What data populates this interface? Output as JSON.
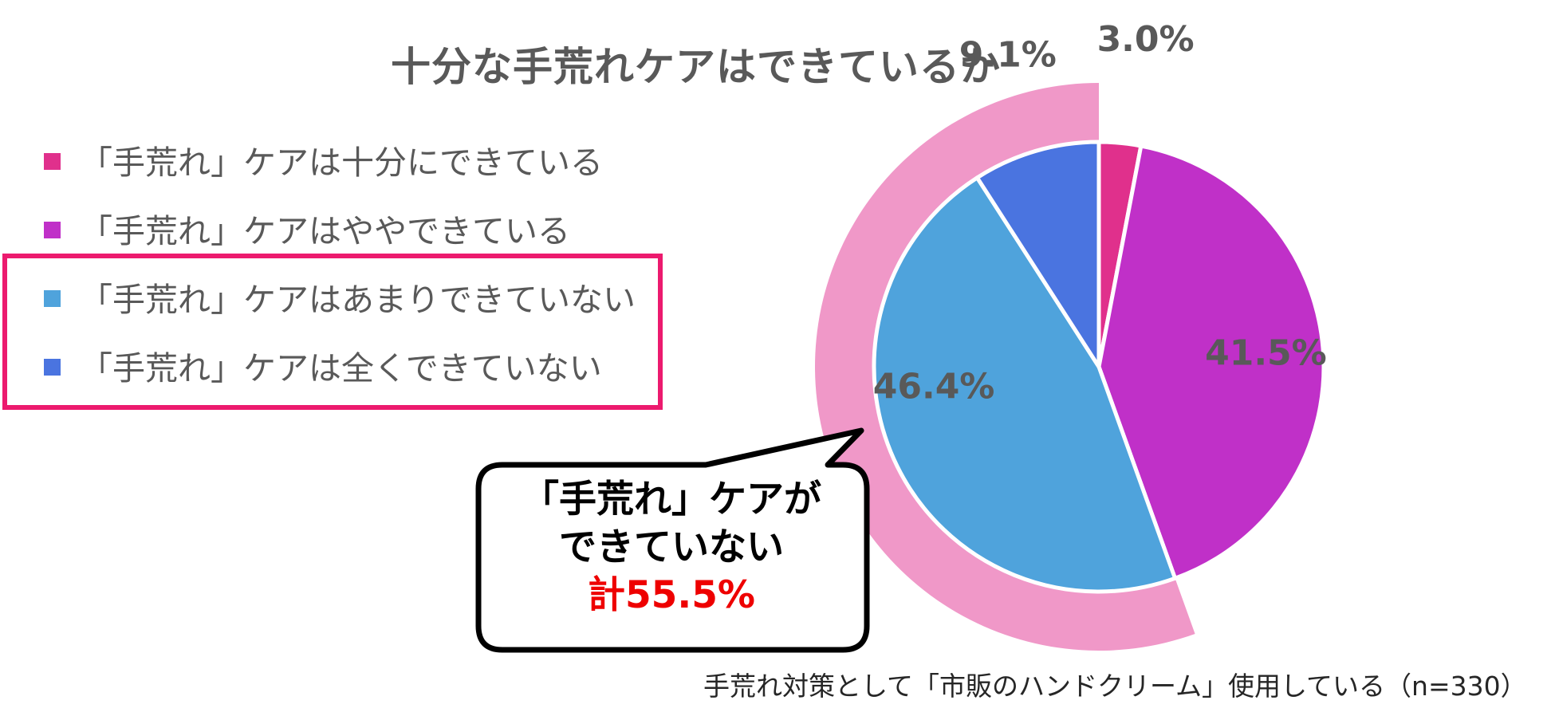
{
  "title": "十分な手荒れケアはできているか",
  "legend": [
    {
      "label": "「手荒れ」ケアは十分にできている",
      "color": "#e0308c"
    },
    {
      "label": "「手荒れ」ケアはややできている",
      "color": "#c030c8"
    },
    {
      "label": "「手荒れ」ケアはあまりできていない",
      "color": "#4fa3dc"
    },
    {
      "label": "「手荒れ」ケアは全くできていない",
      "color": "#4a74e0"
    }
  ],
  "chart_data": {
    "type": "pie",
    "title": "十分な手荒れケアはできているか",
    "categories": [
      "「手荒れ」ケアは十分にできている",
      "「手荒れ」ケアはややできている",
      "「手荒れ」ケアはあまりできていない",
      "「手荒れ」ケアは全くできていない"
    ],
    "values": [
      3.0,
      41.5,
      46.4,
      9.1
    ],
    "labels": [
      "3.0%",
      "41.5%",
      "46.4%",
      "9.1%"
    ],
    "colors": [
      "#e0308c",
      "#c030c8",
      "#4fa3dc",
      "#4a74e0"
    ],
    "highlight_ring_color": "#f098c8",
    "highlighted_categories": [
      2,
      3
    ]
  },
  "callout": {
    "line1": "「手荒れ」ケアが",
    "line2": "できていない",
    "total": "計55.5%"
  },
  "footnote": "手荒れ対策として「市販のハンドクリーム」使用している（n=330）"
}
